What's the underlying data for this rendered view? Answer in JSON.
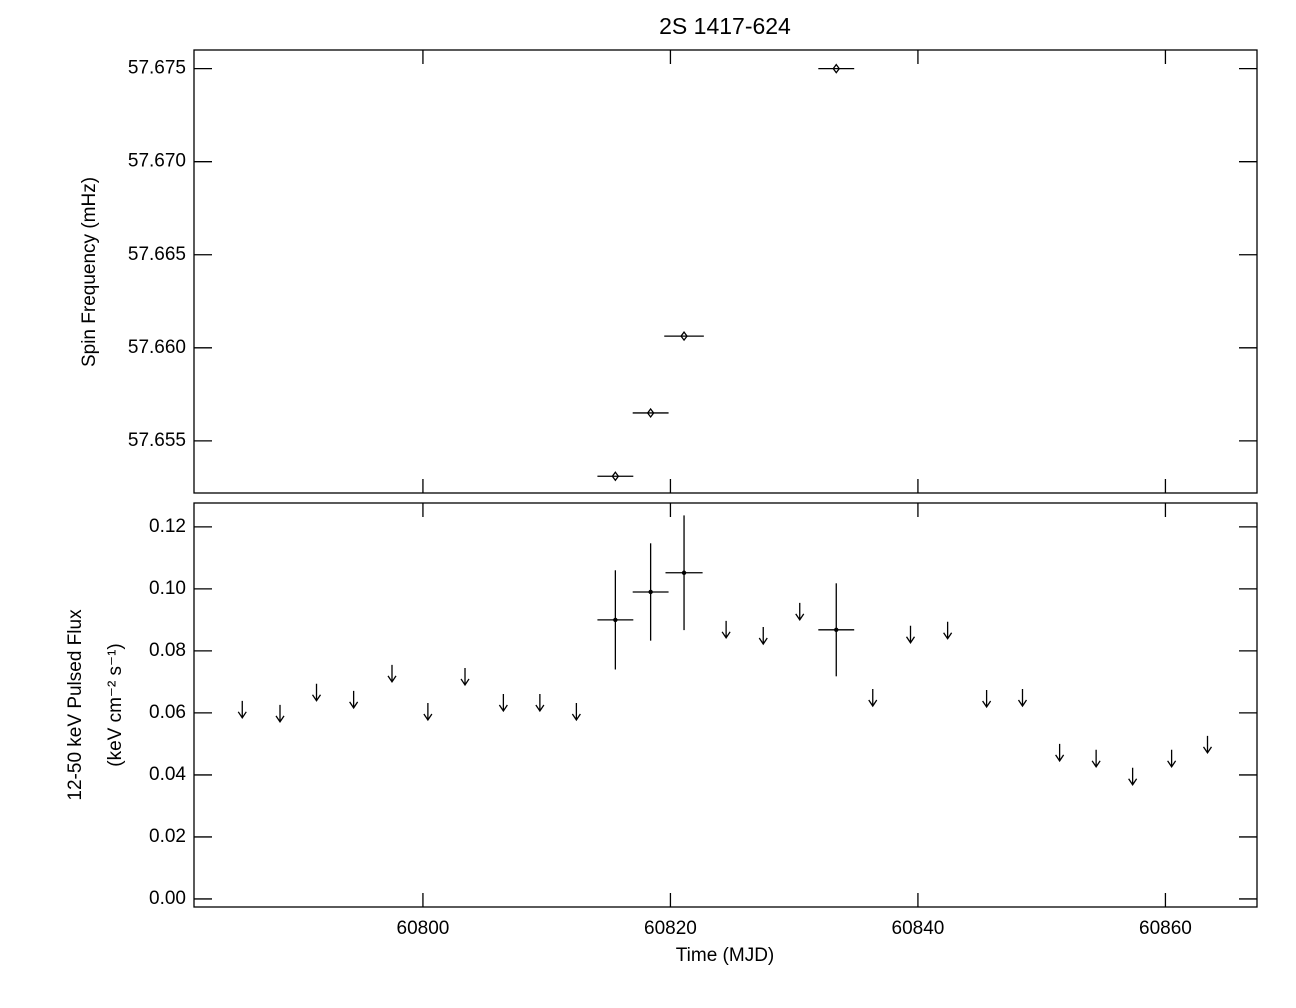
{
  "chart_data": [
    {
      "type": "scatter",
      "title": "2S 1417-624",
      "ylabel": "Spin Frequency (mHz)",
      "xlim": [
        60781.5,
        60867.4
      ],
      "ylim": [
        57.6522,
        57.676
      ],
      "yticks": [
        57.655,
        {
          "value": 57.66,
          "label": "57.660"
        },
        57.665,
        {
          "value": 57.67,
          "label": "57.670"
        },
        57.675
      ],
      "color": "#000000",
      "series": [
        {
          "marker": "diamond",
          "x": [
            60815.55,
            60818.4,
            60821.1,
            60833.4
          ],
          "values": [
            57.6531,
            57.6565,
            57.66063,
            57.675
          ],
          "xerr": [
            1.45,
            1.45,
            1.6,
            1.45
          ]
        }
      ]
    },
    {
      "type": "scatter",
      "xlabel": "Time (MJD)",
      "ylabel": [
        "12-50 keV Pulsed Flux",
        "(keV cm⁻² s⁻¹)"
      ],
      "xlim": [
        60781.5,
        60867.4
      ],
      "ylim": [
        -0.0026,
        0.1277
      ],
      "xticks": [
        60800,
        60820,
        60840,
        60860
      ],
      "yticks": [
        {
          "value": 0,
          "label": "0.00"
        },
        0.02,
        0.04,
        0.06,
        0.08,
        {
          "value": 0.1,
          "label": "0.10"
        },
        0.12
      ],
      "color": "#000000",
      "series": [
        {
          "marker": "dot",
          "x": [
            60815.55,
            60818.4,
            60821.1,
            60833.4
          ],
          "values": [
            0.09,
            0.099,
            0.1052,
            0.0868
          ],
          "xerr": [
            1.45,
            1.45,
            1.5,
            1.45
          ],
          "yerr": [
            0.016,
            0.0157,
            0.0185,
            0.015
          ]
        },
        {
          "marker": "arrow",
          "x": [
            60785.4,
            60788.45,
            60791.4,
            60794.4,
            60797.5,
            60800.4,
            60803.4,
            60806.5,
            60809.45,
            60812.4,
            60824.5,
            60827.5,
            60830.45,
            60836.35,
            60839.4,
            60842.4,
            60845.55,
            60848.45,
            60851.45,
            60854.4,
            60857.35,
            60860.5,
            60863.4
          ],
          "values": [
            0.0639,
            0.0626,
            0.0694,
            0.0671,
            0.0755,
            0.0632,
            0.0745,
            0.0661,
            0.0661,
            0.0632,
            0.0897,
            0.0877,
            0.0955,
            0.0677,
            0.0881,
            0.0894,
            0.0674,
            0.0677,
            0.05,
            0.0481,
            0.0423,
            0.0481,
            0.0526
          ]
        }
      ]
    }
  ]
}
